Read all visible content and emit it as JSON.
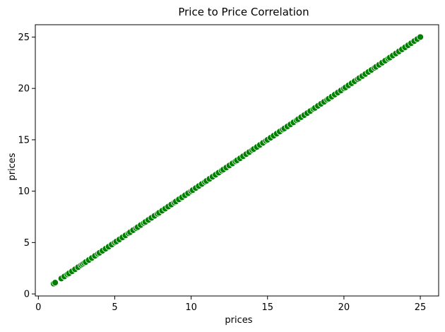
{
  "chart_data": {
    "type": "scatter",
    "title": "Price to Price Correlation",
    "xlabel": "prices",
    "ylabel": "prices",
    "xlim": [
      -0.2,
      26.2
    ],
    "ylim": [
      -0.2,
      26.2
    ],
    "xticks": [
      0,
      5,
      10,
      15,
      20,
      25
    ],
    "yticks": [
      0,
      5,
      10,
      15,
      20,
      25
    ],
    "grid": false,
    "marker_color": "#008000",
    "marker_edge_color": "#ffffff",
    "series": [
      {
        "x": [
          1.0,
          1.1,
          1.5,
          1.7,
          1.9,
          2.0,
          2.2,
          2.4,
          2.6,
          2.8,
          2.9,
          3.0,
          3.1,
          3.3,
          3.5,
          3.7,
          3.9,
          4.0,
          4.2,
          4.4,
          4.6,
          4.8,
          5.0,
          5.1,
          5.3,
          5.5,
          5.7,
          5.9,
          6.0,
          6.2,
          6.4,
          6.5,
          6.7,
          6.9,
          7.0,
          7.2,
          7.4,
          7.6,
          7.8,
          7.9,
          8.1,
          8.3,
          8.5,
          8.7,
          8.9,
          9.0,
          9.2,
          9.4,
          9.6,
          9.8,
          10.0,
          10.1,
          10.3,
          10.5,
          10.7,
          10.9,
          11.0,
          11.2,
          11.4,
          11.6,
          11.8,
          12.0,
          12.1,
          12.3,
          12.5,
          12.7,
          12.9,
          13.0,
          13.2,
          13.4,
          13.6,
          13.8,
          14.0,
          14.1,
          14.3,
          14.5,
          14.7,
          14.9,
          15.0,
          15.2,
          15.4,
          15.6,
          15.8,
          16.0,
          16.1,
          16.3,
          16.5,
          16.7,
          16.9,
          17.0,
          17.2,
          17.4,
          17.6,
          17.8,
          18.0,
          18.1,
          18.3,
          18.5,
          18.7,
          18.9,
          19.0,
          19.2,
          19.4,
          19.6,
          19.8,
          20.0,
          20.1,
          20.3,
          20.5,
          20.7,
          20.9,
          21.0,
          21.2,
          21.4,
          21.6,
          21.8,
          22.0,
          22.1,
          22.3,
          22.5,
          22.7,
          22.9,
          23.0,
          23.2,
          23.4,
          23.6,
          23.8,
          24.0,
          24.2,
          24.4,
          24.6,
          24.8,
          25.0
        ],
        "y": [
          1.0,
          1.1,
          1.5,
          1.7,
          1.9,
          2.0,
          2.2,
          2.4,
          2.6,
          2.8,
          2.9,
          3.0,
          3.1,
          3.3,
          3.5,
          3.7,
          3.9,
          4.0,
          4.2,
          4.4,
          4.6,
          4.8,
          5.0,
          5.1,
          5.3,
          5.5,
          5.7,
          5.9,
          6.0,
          6.2,
          6.4,
          6.5,
          6.7,
          6.9,
          7.0,
          7.2,
          7.4,
          7.6,
          7.8,
          7.9,
          8.1,
          8.3,
          8.5,
          8.7,
          8.9,
          9.0,
          9.2,
          9.4,
          9.6,
          9.8,
          10.0,
          10.1,
          10.3,
          10.5,
          10.7,
          10.9,
          11.0,
          11.2,
          11.4,
          11.6,
          11.8,
          12.0,
          12.1,
          12.3,
          12.5,
          12.7,
          12.9,
          13.0,
          13.2,
          13.4,
          13.6,
          13.8,
          14.0,
          14.1,
          14.3,
          14.5,
          14.7,
          14.9,
          15.0,
          15.2,
          15.4,
          15.6,
          15.8,
          16.0,
          16.1,
          16.3,
          16.5,
          16.7,
          16.9,
          17.0,
          17.2,
          17.4,
          17.6,
          17.8,
          18.0,
          18.1,
          18.3,
          18.5,
          18.7,
          18.9,
          19.0,
          19.2,
          19.4,
          19.6,
          19.8,
          20.0,
          20.1,
          20.3,
          20.5,
          20.7,
          20.9,
          21.0,
          21.2,
          21.4,
          21.6,
          21.8,
          22.0,
          22.1,
          22.3,
          22.5,
          22.7,
          22.9,
          23.0,
          23.2,
          23.4,
          23.6,
          23.8,
          24.0,
          24.2,
          24.4,
          24.6,
          24.8,
          25.0
        ]
      }
    ]
  }
}
